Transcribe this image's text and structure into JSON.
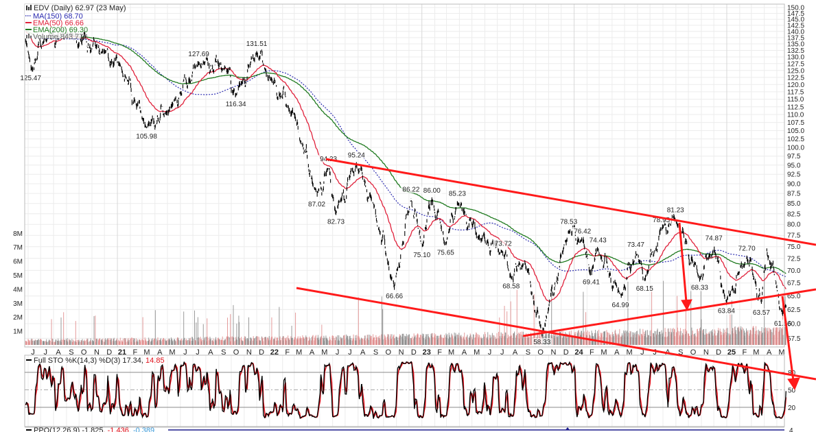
{
  "legend": {
    "title": "EDV (Daily) 62.97 (23 May)",
    "ma150": {
      "label": "MA(150) 68.70",
      "color": "#2a2ab0"
    },
    "ema50": {
      "label": "EMA(50) 66.66",
      "color": "#e0203a"
    },
    "ema200": {
      "label": "EMA(200) 69.30",
      "color": "#1f7a1f"
    },
    "volume": {
      "label": "Volume 843,778",
      "color": "#666666"
    }
  },
  "sto": {
    "label": "Full STO %K(14,3) %D(3) 17.34, ",
    "label_d": "14.85",
    "ticks": [
      "20",
      "50",
      "80"
    ]
  },
  "ppo": {
    "label": "PPO(12,26,9) -1.825",
    "v2": ", -1.436",
    "v3": ", -0.389",
    "tick": "4"
  },
  "chart_data": {
    "type": "line",
    "title": "EDV (Daily)",
    "scale": "log",
    "ylim": [
      57.5,
      150
    ],
    "xrange": [
      "2020-05-26",
      "2025-05-23"
    ],
    "price_ticks": [
      "57.5",
      "60.0",
      "62.5",
      "65.0",
      "67.5",
      "70.0",
      "72.5",
      "75.0",
      "77.5",
      "80.0",
      "82.5",
      "85.0",
      "87.5",
      "90.0",
      "92.5",
      "95.0",
      "97.5",
      "100.0",
      "102.5",
      "105.0",
      "107.5",
      "110.0",
      "112.5",
      "115.0",
      "117.5",
      "120.0",
      "122.5",
      "125.0",
      "127.5",
      "130.0",
      "132.5",
      "135.0",
      "137.5",
      "140.0",
      "142.5",
      "145.0",
      "147.5",
      "150.0"
    ],
    "volume_ticks": [
      "1M",
      "2M",
      "3M",
      "4M",
      "5M",
      "6M",
      "7M",
      "8M"
    ],
    "month_initials": [
      "J",
      "F",
      "M",
      "A",
      "M",
      "J",
      "J",
      "A",
      "S",
      "O",
      "N",
      "D"
    ],
    "key_points": [
      [
        "2020-05-26",
        136
      ],
      [
        "2020-06-07",
        125.47
      ],
      [
        "2020-07-10",
        137
      ],
      [
        "2020-09-05",
        139
      ],
      [
        "2020-11-28",
        132
      ],
      [
        "2021-01-07",
        127
      ],
      [
        "2021-03-12",
        105.98
      ],
      [
        "2021-05-08",
        112
      ],
      [
        "2021-07-15",
        127.69
      ],
      [
        "2021-09-18",
        126
      ],
      [
        "2021-10-12",
        116.34
      ],
      [
        "2021-12-01",
        131.51
      ],
      [
        "2022-01-03",
        122
      ],
      [
        "2022-03-01",
        110
      ],
      [
        "2022-04-24",
        87.02
      ],
      [
        "2022-05-22",
        94.23
      ],
      [
        "2022-06-09",
        82.73
      ],
      [
        "2022-07-28",
        95.24
      ],
      [
        "2022-09-06",
        85
      ],
      [
        "2022-10-27",
        66.66
      ],
      [
        "2022-12-06",
        86.22
      ],
      [
        "2023-01-01",
        75.1
      ],
      [
        "2023-01-25",
        86.0
      ],
      [
        "2023-02-27",
        75.65
      ],
      [
        "2023-03-27",
        85.23
      ],
      [
        "2023-05-19",
        77
      ],
      [
        "2023-07-15",
        73.72
      ],
      [
        "2023-08-03",
        68.58
      ],
      [
        "2023-09-04",
        72
      ],
      [
        "2023-10-16",
        58.33
      ],
      [
        "2023-12-19",
        78.53
      ],
      [
        "2024-01-21",
        76.42
      ],
      [
        "2024-02-11",
        69.41
      ],
      [
        "2024-02-27",
        74.43
      ],
      [
        "2024-04-21",
        64.99
      ],
      [
        "2024-05-28",
        73.47
      ],
      [
        "2024-06-18",
        68.15
      ],
      [
        "2024-07-28",
        78.95
      ],
      [
        "2024-08-31",
        81.23
      ],
      [
        "2024-10-28",
        68.33
      ],
      [
        "2024-12-01",
        74.87
      ],
      [
        "2024-12-31",
        63.84
      ],
      [
        "2025-02-18",
        72.7
      ],
      [
        "2025-03-10",
        68
      ],
      [
        "2025-03-25",
        63.57
      ],
      [
        "2025-04-07",
        74
      ],
      [
        "2025-04-28",
        68
      ],
      [
        "2025-05-15",
        61.56
      ],
      [
        "2025-05-23",
        62.97
      ]
    ],
    "annotations": [
      {
        "date": "2020-06-07",
        "value": "125.47",
        "kind": "low"
      },
      {
        "date": "2021-03-12",
        "value": "105.98",
        "kind": "low"
      },
      {
        "date": "2021-07-15",
        "value": "127.69",
        "kind": "high"
      },
      {
        "date": "2021-10-12",
        "value": "116.34",
        "kind": "low"
      },
      {
        "date": "2021-12-01",
        "value": "131.51",
        "kind": "high"
      },
      {
        "date": "2022-04-24",
        "value": "87.02",
        "kind": "low"
      },
      {
        "date": "2022-05-22",
        "value": "94.23",
        "kind": "high"
      },
      {
        "date": "2022-06-09",
        "value": "82.73",
        "kind": "low"
      },
      {
        "date": "2022-07-28",
        "value": "95.24",
        "kind": "high"
      },
      {
        "date": "2022-10-27",
        "value": "66.66",
        "kind": "low"
      },
      {
        "date": "2022-12-06",
        "value": "86.22",
        "kind": "high"
      },
      {
        "date": "2023-01-01",
        "value": "75.10",
        "kind": "low"
      },
      {
        "date": "2023-01-25",
        "value": "86.00",
        "kind": "high"
      },
      {
        "date": "2023-02-27",
        "value": "75.65",
        "kind": "low"
      },
      {
        "date": "2023-03-27",
        "value": "85.23",
        "kind": "high"
      },
      {
        "date": "2023-07-15",
        "value": "73.72",
        "kind": "high"
      },
      {
        "date": "2023-08-03",
        "value": "68.58",
        "kind": "low"
      },
      {
        "date": "2023-10-16",
        "value": "58.33",
        "kind": "low"
      },
      {
        "date": "2023-12-19",
        "value": "78.53",
        "kind": "high"
      },
      {
        "date": "2024-01-21",
        "value": "76.42",
        "kind": "high"
      },
      {
        "date": "2024-02-11",
        "value": "69.41",
        "kind": "low"
      },
      {
        "date": "2024-02-27",
        "value": "74.43",
        "kind": "high"
      },
      {
        "date": "2024-04-21",
        "value": "64.99",
        "kind": "low"
      },
      {
        "date": "2024-05-28",
        "value": "73.47",
        "kind": "high"
      },
      {
        "date": "2024-06-18",
        "value": "68.15",
        "kind": "low"
      },
      {
        "date": "2024-07-28",
        "value": "78.95",
        "kind": "high"
      },
      {
        "date": "2024-08-31",
        "value": "81.23",
        "kind": "high"
      },
      {
        "date": "2024-10-28",
        "value": "68.33",
        "kind": "low"
      },
      {
        "date": "2024-12-01",
        "value": "74.87",
        "kind": "high"
      },
      {
        "date": "2024-12-31",
        "value": "63.84",
        "kind": "low"
      },
      {
        "date": "2025-02-18",
        "value": "72.70",
        "kind": "high"
      },
      {
        "date": "2025-03-25",
        "value": "63.57",
        "kind": "low"
      },
      {
        "date": "2025-05-15",
        "value": "61.56",
        "kind": "low"
      }
    ],
    "last_close": 62.97,
    "ma150_last": 68.7,
    "ema50_last": 66.66,
    "ema200_last": 69.3,
    "volume_last": 843778,
    "sto_k_last": 17.34,
    "sto_d_last": 14.85,
    "colors": {
      "price": "#000000",
      "sto_d": "#e0101a",
      "trendline": "#ff1a1a",
      "vol_up": "#888888",
      "vol_down": "#e08a8a"
    }
  }
}
